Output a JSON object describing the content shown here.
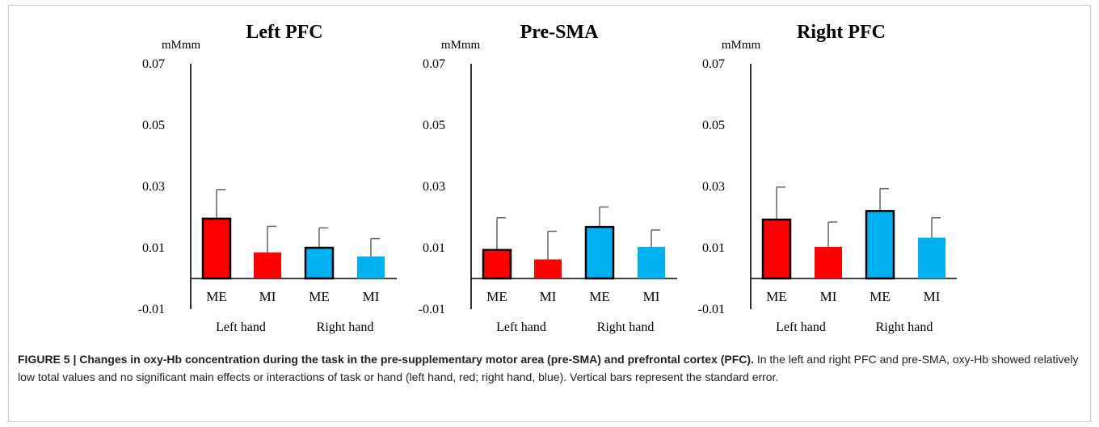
{
  "chart_data": [
    {
      "type": "bar",
      "title": "Left PFC",
      "unit_label": "mMmm",
      "categories": [
        "ME",
        "MI",
        "ME",
        "MI"
      ],
      "groups": [
        "Left hand",
        "Right hand"
      ],
      "values": [
        0.0195,
        0.0085,
        0.01,
        0.0072
      ],
      "errors": [
        0.0095,
        0.0085,
        0.0065,
        0.0058
      ],
      "yticks": [
        "0.07",
        "0.05",
        "0.03",
        "0.01",
        "-0.01"
      ],
      "ylim": [
        -0.01,
        0.07
      ]
    },
    {
      "type": "bar",
      "title": "Pre-SMA",
      "unit_label": "mMmm",
      "categories": [
        "ME",
        "MI",
        "ME",
        "MI"
      ],
      "groups": [
        "Left hand",
        "Right hand"
      ],
      "values": [
        0.0093,
        0.0062,
        0.0168,
        0.0103
      ],
      "errors": [
        0.0105,
        0.0092,
        0.0065,
        0.0055
      ],
      "yticks": [
        "0.07",
        "0.05",
        "0.03",
        "0.01",
        "-0.01"
      ],
      "ylim": [
        -0.01,
        0.07
      ]
    },
    {
      "type": "bar",
      "title": "Right PFC",
      "unit_label": "mMmm",
      "categories": [
        "ME",
        "MI",
        "ME",
        "MI"
      ],
      "groups": [
        "Left hand",
        "Right hand"
      ],
      "values": [
        0.0192,
        0.0103,
        0.022,
        0.0133
      ],
      "errors": [
        0.0106,
        0.0081,
        0.0073,
        0.0065
      ],
      "yticks": [
        "0.07",
        "0.05",
        "0.03",
        "0.01",
        "-0.01"
      ],
      "ylim": [
        -0.01,
        0.07
      ]
    }
  ],
  "colors": {
    "left_hand": "#ff0000",
    "right_hand": "#00b0f0",
    "axis": "#000000",
    "error_bar": "#666666"
  },
  "caption": {
    "label": "FIGURE 5 | Changes in oxy-Hb concentration during the task in the pre-supplementary motor area (pre-SMA) and prefrontal cortex (PFC).",
    "body": " In the left and right PFC and pre-SMA, oxy-Hb showed relatively low total values and no significant main effects or interactions of task or hand (left hand, red; right hand, blue). Vertical bars represent the standard error."
  }
}
